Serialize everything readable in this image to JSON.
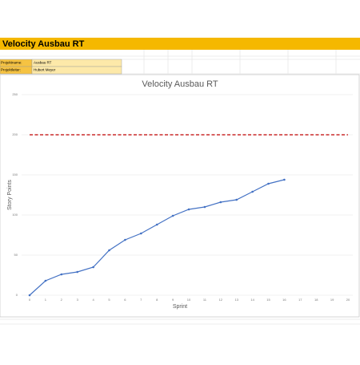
{
  "header": {
    "title": "Velocity Ausbau RT"
  },
  "fields": [
    {
      "label": "Projektname:",
      "value": "Ausbau RT"
    },
    {
      "label": "Projektleiter:",
      "value": "Hubert Meyer"
    }
  ],
  "chart_data": {
    "type": "line",
    "title": "Velocity Ausbau RT",
    "x_label": "Sprint",
    "y_label": "Story Points",
    "x": [
      0,
      1,
      2,
      3,
      4,
      5,
      6,
      7,
      8,
      9,
      10,
      11,
      12,
      13,
      14,
      15,
      16,
      17,
      18,
      19,
      20
    ],
    "series": [
      {
        "color": "#4472c4",
        "values": [
          0,
          18,
          26,
          29,
          35,
          56,
          69,
          77,
          88,
          99,
          107,
          110,
          116,
          119,
          129,
          139,
          144,
          null,
          null,
          null,
          null
        ]
      }
    ],
    "xlim": [
      0,
      20
    ],
    "ylim": [
      0,
      250
    ],
    "yticks": [
      0,
      50,
      100,
      150,
      200,
      250
    ],
    "grid": true,
    "reference_line": {
      "value": 200,
      "color": "#c00000",
      "style": "dashed"
    }
  }
}
